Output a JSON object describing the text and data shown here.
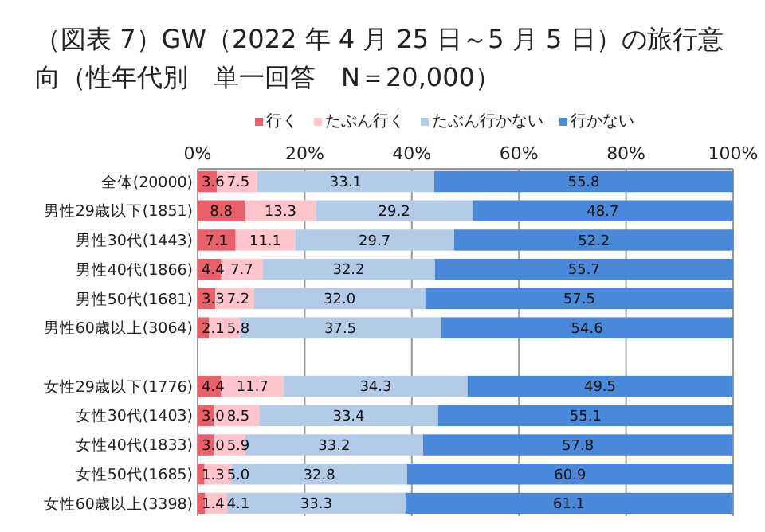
{
  "chart_data": {
    "type": "bar",
    "orientation": "horizontal",
    "stacked": true,
    "title": "（図表 7）GW（2022 年 4 月 25 日～5 月 5 日）の旅行意向（性年代別　単一回答　N＝20,000）",
    "categories": [
      "全体(20000)",
      "男性29歳以下(1851)",
      "男性30代(1443)",
      "男性40代(1866)",
      "男性50代(1681)",
      "男性60歳以上(3064)",
      null,
      "女性29歳以下(1776)",
      "女性30代(1403)",
      "女性40代(1833)",
      "女性50代(1685)",
      "女性60歳以上(3398)"
    ],
    "series": [
      {
        "name": "行く",
        "color": "#e8606a",
        "values": [
          3.6,
          8.8,
          7.1,
          4.4,
          3.3,
          2.1,
          null,
          4.4,
          3.0,
          3.0,
          1.3,
          1.4
        ],
        "value_labels": [
          "3.6",
          "8.8",
          "7.1",
          "4.4",
          "3.3",
          "2.1",
          null,
          "4.4",
          "3.0",
          "3.0",
          "1.3",
          "1.4"
        ]
      },
      {
        "name": "たぶん行く",
        "color": "#ffc4cc",
        "values": [
          7.5,
          13.3,
          11.1,
          7.7,
          7.2,
          5.8,
          null,
          11.7,
          8.5,
          5.9,
          5.0,
          4.1
        ],
        "value_labels": [
          "7.5",
          "13.3",
          "11.1",
          "7.7",
          "7.2",
          "5.8",
          null,
          "11.7",
          "8.5",
          "5.9",
          "5.0",
          "4.1"
        ]
      },
      {
        "name": "たぶん行かない",
        "color": "#b4cbe8",
        "values": [
          33.1,
          29.2,
          29.7,
          32.2,
          32.0,
          37.5,
          null,
          34.3,
          33.4,
          33.2,
          32.8,
          33.3
        ],
        "value_labels": [
          "33.1",
          "29.2",
          "29.7",
          "32.2",
          "32.0",
          "37.5",
          null,
          "34.3",
          "33.4",
          "33.2",
          "32.8",
          "33.3"
        ]
      },
      {
        "name": "行かない",
        "color": "#4a88da",
        "values": [
          55.8,
          48.7,
          52.2,
          55.7,
          57.5,
          54.6,
          null,
          49.5,
          55.1,
          57.8,
          60.9,
          61.1
        ],
        "value_labels": [
          "55.8",
          "48.7",
          "52.2",
          "55.7",
          "57.5",
          "54.6",
          null,
          "49.5",
          "55.1",
          "57.8",
          "60.9",
          "61.1"
        ]
      }
    ],
    "xlim": [
      0,
      100
    ],
    "xticks": [
      {
        "value": 0,
        "label": "0%"
      },
      {
        "value": 20,
        "label": "20%"
      },
      {
        "value": 40,
        "label": "40%"
      },
      {
        "value": 60,
        "label": "60%"
      },
      {
        "value": 80,
        "label": "80%"
      },
      {
        "value": 100,
        "label": "100%"
      }
    ],
    "grid": "x",
    "legend": "top"
  }
}
